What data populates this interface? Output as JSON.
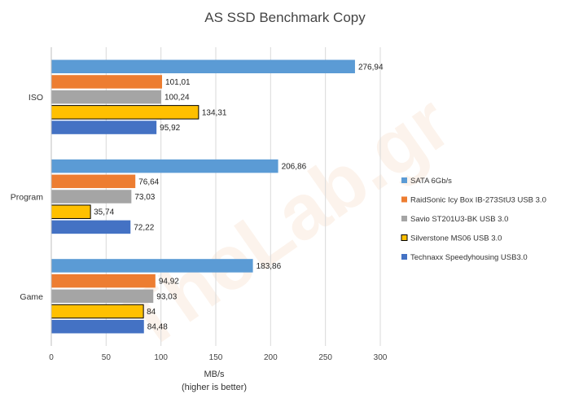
{
  "chart_data": {
    "type": "bar",
    "orientation": "horizontal",
    "title": "AS SSD Benchmark Copy",
    "xlabel": "MB/s",
    "xlabel_sub": "(higher is better)",
    "ylabel": "",
    "xlim": [
      0,
      300
    ],
    "x_ticks": [
      0,
      50,
      100,
      150,
      200,
      250,
      300
    ],
    "grid": true,
    "legend_position": "right",
    "watermark": "TheLab.gr",
    "categories": [
      "ISO",
      "Program",
      "Game"
    ],
    "series": [
      {
        "name": "SATA 6Gb/s",
        "color": "#5b9bd5",
        "values": [
          276.94,
          206.86,
          183.86
        ],
        "labels": [
          "276,94",
          "206,86",
          "183,86"
        ]
      },
      {
        "name": "RaidSonic Icy Box IB-273StU3 USB 3.0",
        "color": "#ed7d31",
        "values": [
          101.01,
          76.64,
          94.92
        ],
        "labels": [
          "101,01",
          "76,64",
          "94,92"
        ]
      },
      {
        "name": "Savio ST201U3-BK USB 3.0",
        "color": "#a5a5a5",
        "values": [
          100.24,
          73.03,
          93.03
        ],
        "labels": [
          "100,24",
          "73,03",
          "93,03"
        ]
      },
      {
        "name": "Silverstone MS06 USB 3.0",
        "color": "#ffc000",
        "outline": "#000000",
        "values": [
          134.31,
          35.74,
          84
        ],
        "labels": [
          "134,31",
          "35,74",
          "84"
        ]
      },
      {
        "name": "Technaxx Speedyhousing USB3.0",
        "color": "#4472c4",
        "values": [
          95.92,
          72.22,
          84.48
        ],
        "labels": [
          "95,92",
          "72,22",
          "84,48"
        ]
      }
    ]
  }
}
